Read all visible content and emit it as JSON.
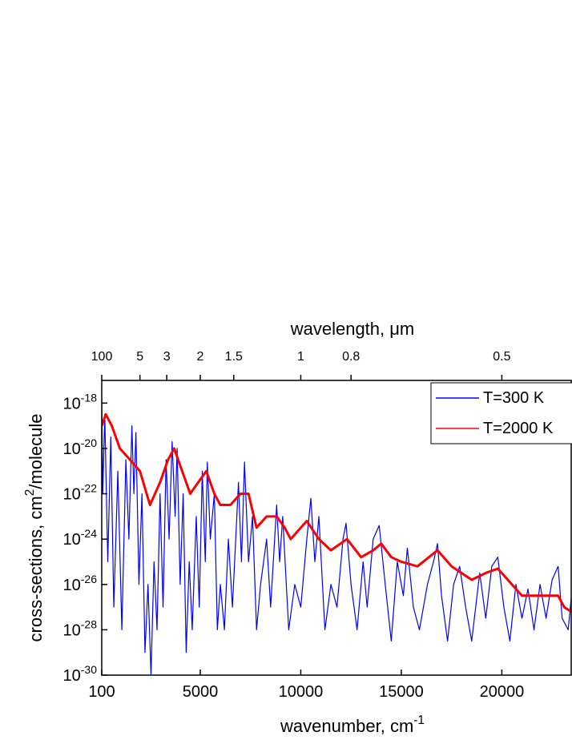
{
  "chart_data": {
    "type": "line",
    "xlabel": "wavenumber, cm^{-1}",
    "ylabel": "cross-sections, cm^{2}/molecule",
    "x2label": "wavelength, μm",
    "xlim": [
      100,
      23450
    ],
    "xticks": [
      100,
      5000,
      10000,
      15000,
      20000
    ],
    "x2ticks": [
      100,
      5,
      3,
      2,
      1.5,
      1,
      0.8,
      0.5
    ],
    "ylim": [
      1e-30,
      1e-17
    ],
    "yscale": "log",
    "yticks": [
      {
        "value": 1e-18,
        "label": "10^{-18}"
      },
      {
        "value": 1e-20,
        "label": "10^{-20}"
      },
      {
        "value": 1e-22,
        "label": "10^{-22}"
      },
      {
        "value": 1e-24,
        "label": "10^{-24}"
      },
      {
        "value": 1e-26,
        "label": "10^{-26}"
      },
      {
        "value": 1e-28,
        "label": "10^{-28}"
      },
      {
        "value": 1e-30,
        "label": "10^{-30}"
      }
    ],
    "legend": "top-right",
    "series": [
      {
        "name": "T=300 K",
        "color": "#0000ff",
        "x": [
          100,
          150,
          250,
          400,
          550,
          700,
          900,
          1100,
          1300,
          1450,
          1600,
          1700,
          1800,
          1950,
          2100,
          2250,
          2400,
          2550,
          2700,
          2850,
          3000,
          3150,
          3300,
          3450,
          3600,
          3750,
          3850,
          4000,
          4150,
          4300,
          4450,
          4600,
          4800,
          4950,
          5100,
          5250,
          5350,
          5500,
          5700,
          5850,
          6000,
          6200,
          6400,
          6600,
          6900,
          7050,
          7200,
          7400,
          7600,
          7800,
          8000,
          8300,
          8500,
          8800,
          8950,
          9100,
          9400,
          9700,
          10000,
          10300,
          10500,
          10700,
          10900,
          11200,
          11500,
          11800,
          12100,
          12250,
          12500,
          12800,
          13100,
          13300,
          13600,
          13900,
          14200,
          14500,
          14800,
          15100,
          15300,
          15600,
          15900,
          16300,
          16600,
          16800,
          17000,
          17300,
          17600,
          17900,
          18200,
          18500,
          18900,
          19200,
          19500,
          19800,
          20100,
          20400,
          20700,
          21000,
          21300,
          21600,
          21900,
          22200,
          22500,
          22800,
          23000,
          23300,
          23450
        ],
        "values": [
          1.6e-18,
          1e-22,
          3.2e-19,
          1e-25,
          3.2e-20,
          1e-27,
          1e-21,
          1e-28,
          3.2e-21,
          1e-24,
          1e-19,
          1e-22,
          5e-20,
          1e-26,
          1e-22,
          1e-29,
          1e-26,
          1e-30,
          1e-25,
          1e-28,
          1e-22,
          1e-27,
          3.2e-21,
          1e-24,
          2e-20,
          1e-23,
          1e-20,
          1e-26,
          1e-22,
          1e-29,
          1e-25,
          1e-28,
          1e-23,
          1e-27,
          1e-21,
          1e-25,
          2.5e-21,
          1e-24,
          1e-22,
          1e-28,
          1e-26,
          1e-28,
          1e-24,
          1e-27,
          3.2e-22,
          1e-25,
          2.5e-21,
          1e-25,
          1e-23,
          1e-28,
          1e-26,
          1e-24,
          1e-27,
          3.2e-23,
          1e-25,
          1e-23,
          1e-28,
          1e-26,
          1e-27,
          1e-24,
          6.3e-23,
          1e-25,
          1e-23,
          1e-28,
          1e-26,
          1e-27,
          1e-24,
          5e-24,
          1e-26,
          1e-28,
          1e-25,
          1e-27,
          1e-24,
          4e-24,
          1e-26,
          3.2e-29,
          1e-25,
          3.2e-27,
          4e-25,
          1e-27,
          1e-28,
          1e-26,
          1e-25,
          6.3e-25,
          3.2e-27,
          3.2e-29,
          1e-26,
          6.3e-26,
          1e-27,
          3.2e-29,
          3.2e-26,
          3.2e-28,
          6.3e-26,
          1.6e-25,
          1e-27,
          3.2e-29,
          1e-26,
          3.2e-28,
          6.3e-27,
          1e-28,
          1e-26,
          3.2e-28,
          1.6e-26,
          6.3e-26,
          3.2e-28,
          1e-28,
          2.5e-27
        ]
      },
      {
        "name": "T=2000 K",
        "color": "#ff0000",
        "x": [
          100,
          300,
          600,
          1000,
          1500,
          2000,
          2500,
          3000,
          3400,
          3700,
          4100,
          4500,
          4900,
          5300,
          5700,
          6000,
          6500,
          7000,
          7400,
          7800,
          8300,
          8800,
          9200,
          9500,
          10000,
          10300,
          10900,
          11500,
          12300,
          13000,
          13600,
          14000,
          14500,
          15000,
          15800,
          16800,
          17500,
          18500,
          19200,
          19800,
          20500,
          21000,
          21800,
          22800,
          23100,
          23450
        ],
        "values": [
          1e-19,
          3.2e-19,
          1e-19,
          1e-20,
          3.2e-21,
          1e-21,
          3.2e-23,
          3.2e-22,
          3.2e-21,
          1e-20,
          1e-21,
          1e-22,
          3.2e-22,
          1e-21,
          1e-22,
          3.2e-23,
          3.2e-23,
          1e-22,
          1e-22,
          3.2e-24,
          1e-23,
          1e-23,
          3.2e-24,
          1e-24,
          3.2e-24,
          6.3e-24,
          1e-24,
          3.2e-25,
          1e-24,
          1.6e-25,
          3.2e-25,
          6.3e-25,
          1.6e-25,
          1e-25,
          6.3e-26,
          3.2e-25,
          6.3e-26,
          1.6e-26,
          3.2e-26,
          5e-26,
          1e-26,
          3.2e-27,
          3.2e-27,
          3.2e-27,
          1e-27,
          6.3e-28
        ]
      }
    ]
  }
}
